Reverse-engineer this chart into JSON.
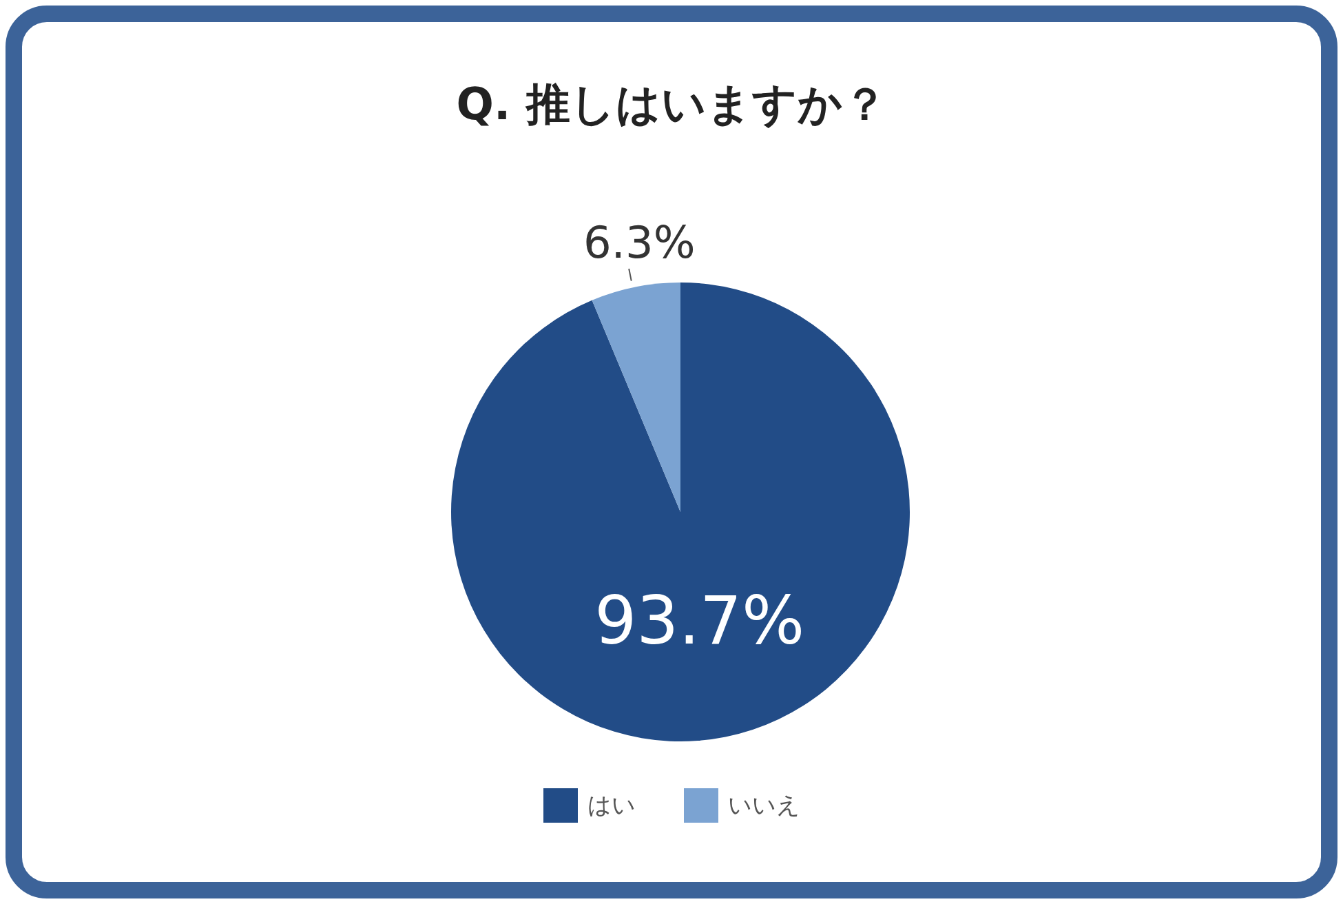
{
  "chart_data": {
    "type": "pie",
    "title": "Q. 推しはいますか？",
    "categories": [
      "はい",
      "いいえ"
    ],
    "values": [
      93.7,
      6.3
    ],
    "colors": [
      "#224c87",
      "#7ba3d2"
    ],
    "value_labels": [
      "93.7%",
      "6.3%"
    ],
    "legend": "bottom"
  }
}
